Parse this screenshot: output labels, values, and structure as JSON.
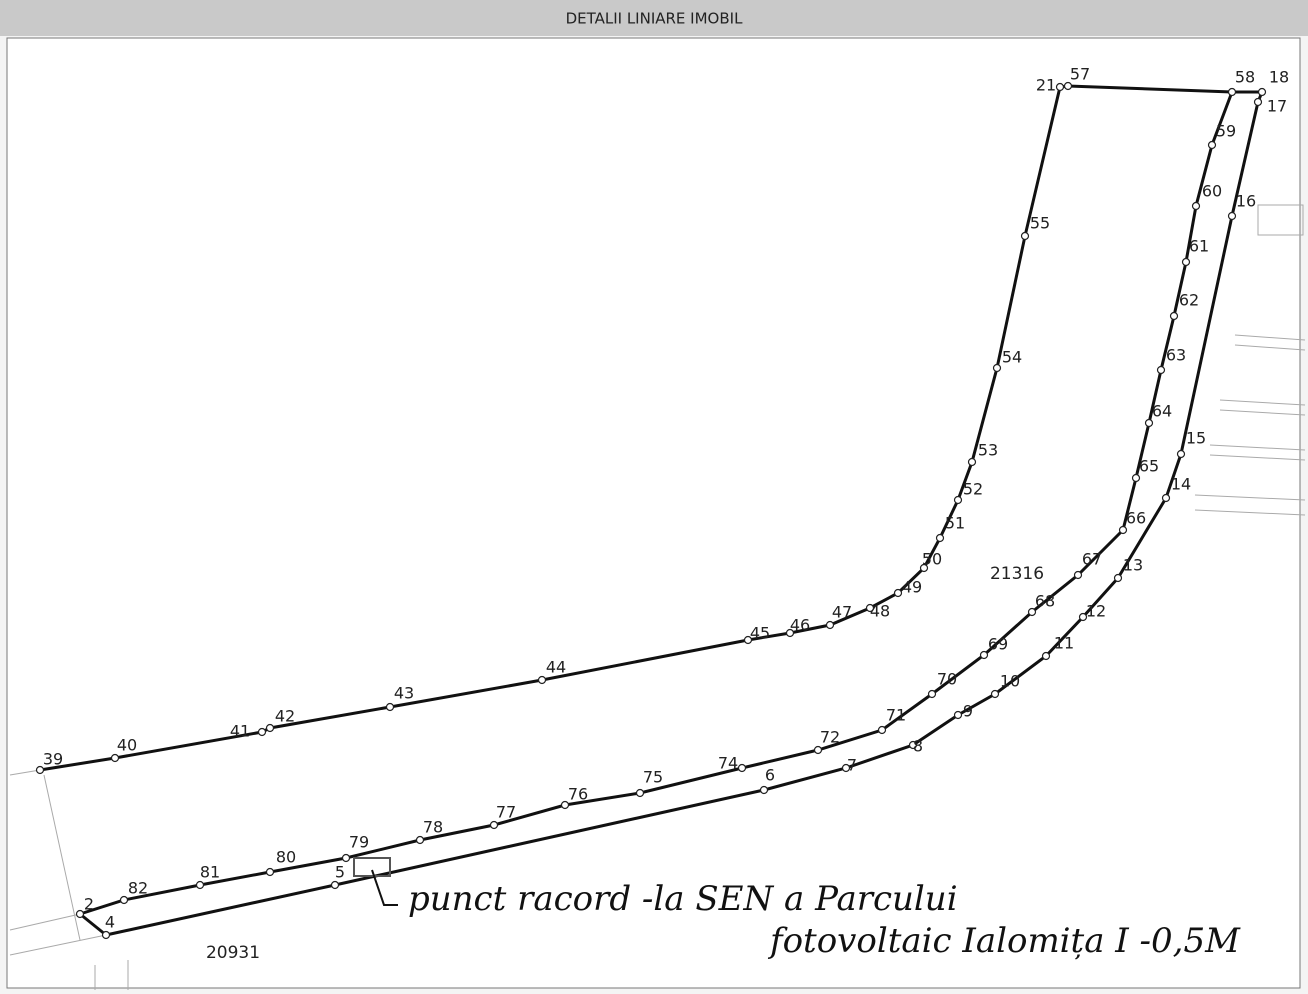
{
  "header": {
    "title": "DETALII LINIARE IMOBIL"
  },
  "points": [
    "39",
    "40",
    "41",
    "42",
    "43",
    "44",
    "45",
    "46",
    "47",
    "48",
    "49",
    "50",
    "51",
    "52",
    "53",
    "54",
    "55",
    "21",
    "57",
    "58",
    "18",
    "17",
    "59",
    "60",
    "16",
    "61",
    "62",
    "63",
    "64",
    "15",
    "65",
    "14",
    "66",
    "67",
    "13",
    "68",
    "12",
    "69",
    "11",
    "70",
    "10",
    "71",
    "9",
    "72",
    "8",
    "74",
    "7",
    "6",
    "75",
    "76",
    "77",
    "78",
    "79",
    "80",
    "81",
    "5",
    "82",
    "2",
    "4"
  ],
  "parcels": [
    "21316",
    "20931"
  ],
  "annotation": [
    "punct racord -la SEN a Parcului",
    "fotovoltaic Ialomița I -0,5M"
  ]
}
